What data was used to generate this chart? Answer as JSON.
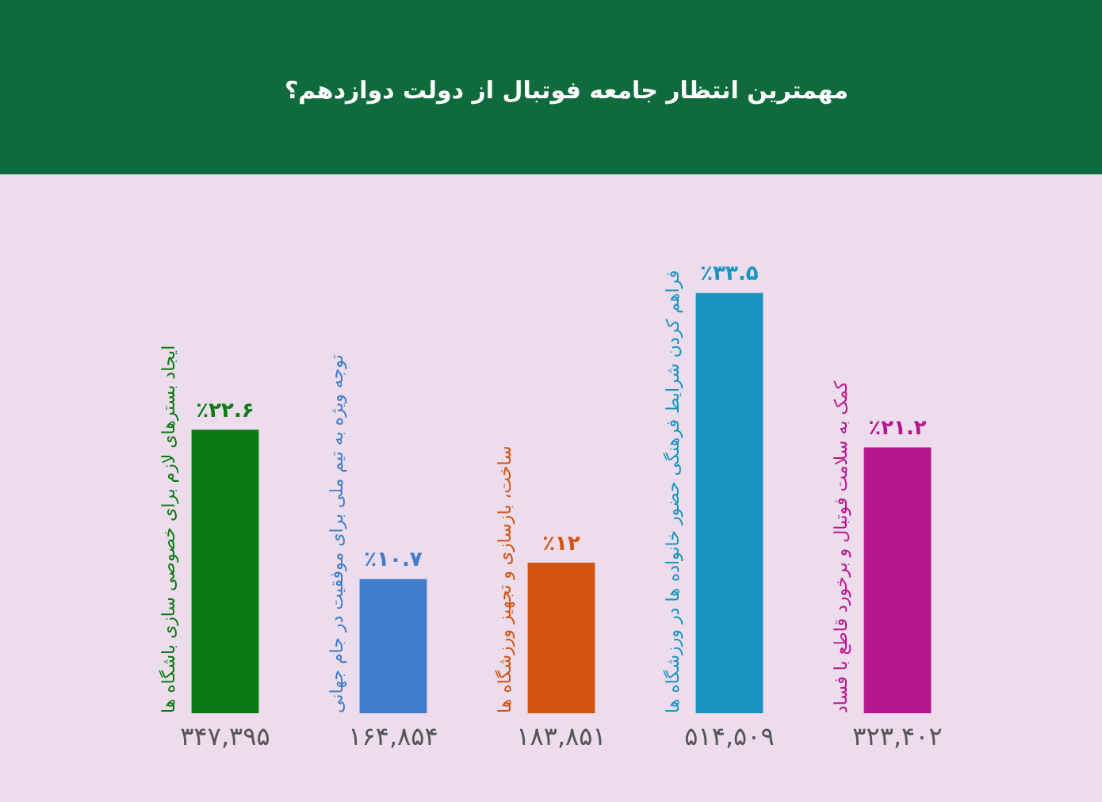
{
  "chart_data": {
    "type": "bar",
    "title": "مهمترین انتظار جامعه فوتبال از دولت دوازدهم؟",
    "categories": [
      "ایجاد بسترهای لازم برای خصوصی سازی باشگاه ها",
      "توجه ویژه به تیم ملی برای موفقیت در جام جهانی",
      "ساخت، بازسازی و تجهیز ورزشگاه ها",
      "فراهم کردن شرایط فرهنگی حضور خانواده ها در ورزشگاه ها",
      "کمک به سلامت فوتبال و برخورد قاطع با فساد"
    ],
    "values": [
      22.6,
      10.7,
      12,
      33.5,
      21.2
    ],
    "colors": [
      "#0b7a12",
      "#3f7ccc",
      "#d3520f",
      "#1a95c0",
      "#b8168e"
    ],
    "value_labels": [
      "٪۲۲.۶",
      "٪۱۰.۷",
      "٪۱۲",
      "٪۳۳.۵",
      "٪۲۱.۲"
    ],
    "annotations": [
      "۳۴۷,۳۹۵",
      "۱۶۴,۸۵۴",
      "۱۸۳,۸۵۱",
      "۵۱۴,۵۰۹",
      "۳۲۳,۴۰۲"
    ],
    "legend": false
  }
}
